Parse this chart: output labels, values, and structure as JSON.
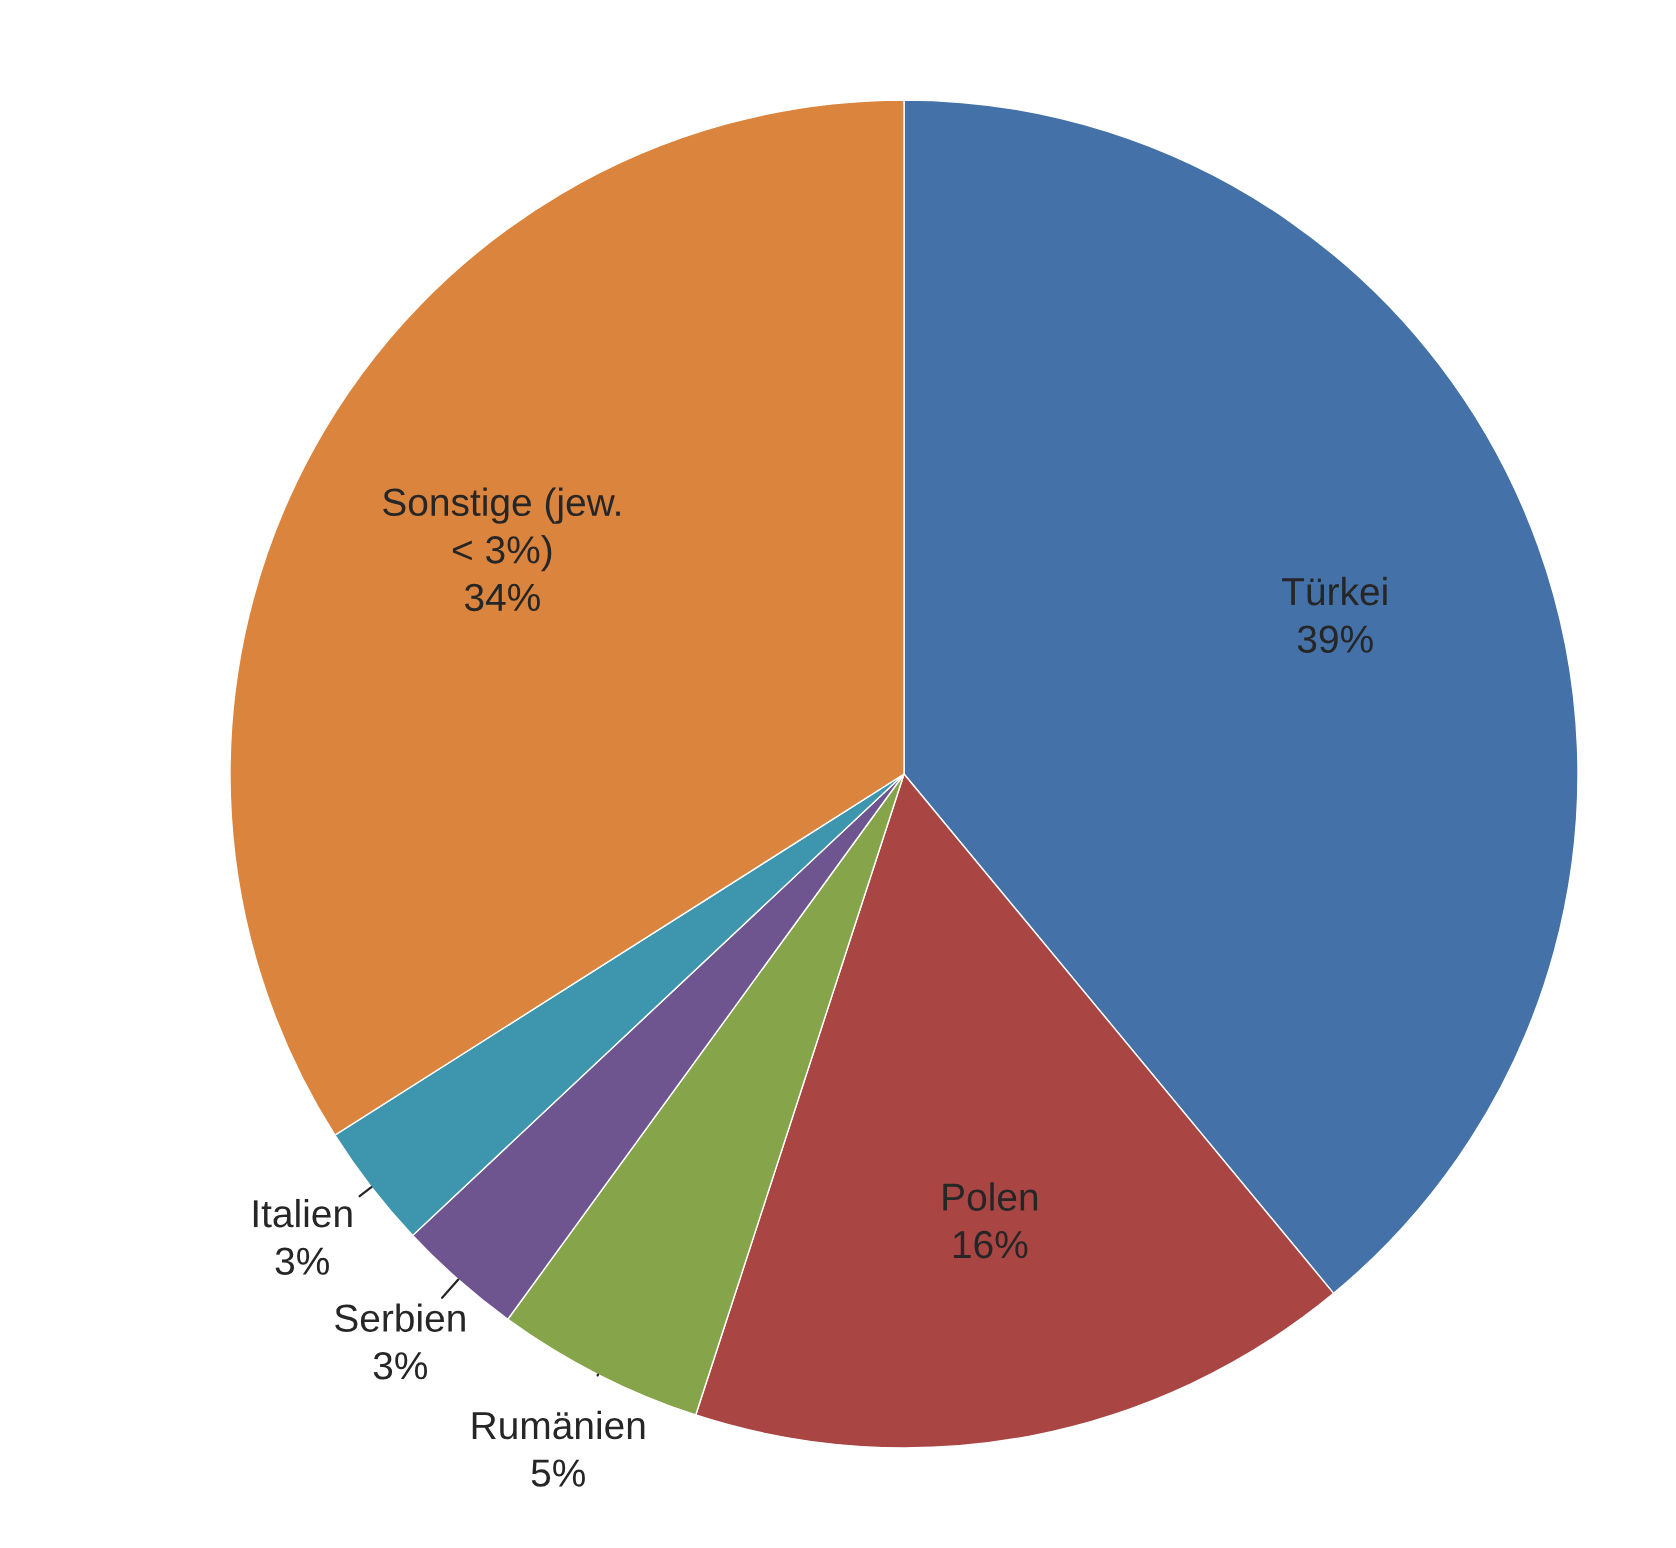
{
  "chart_data": {
    "type": "pie",
    "categories": [
      "Türkei",
      "Polen",
      "Rumänien",
      "Serbien",
      "Italien",
      "Sonstige (jew. < 3%)"
    ],
    "values": [
      39,
      16,
      5,
      3,
      3,
      34
    ],
    "value_labels": [
      "39%",
      "16%",
      "5%",
      "3%",
      "3%",
      "34%"
    ],
    "colors": [
      "#4472a8",
      "#a94643",
      "#86a44a",
      "#6f558f",
      "#3d96ae",
      "#db843d"
    ]
  }
}
